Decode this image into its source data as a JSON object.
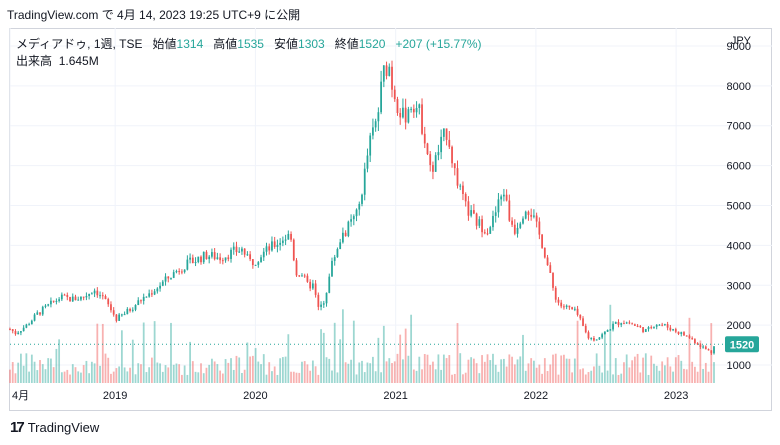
{
  "header": {
    "text": "TradingView.com で 4月 14, 2023 19:25 UTC+9 に公開"
  },
  "legend": {
    "symbol": "メディアドゥ, 1週, TSE",
    "open_label": "始値",
    "open": "1314",
    "high_label": "高値",
    "high": "1535",
    "low_label": "安値",
    "low": "1303",
    "close_label": "終値",
    "close": "1520",
    "change": "+207 (+15.77%)"
  },
  "volume_legend": {
    "label": "出来高",
    "value": "1.645M"
  },
  "footer": {
    "brand": "TradingView",
    "logo_icon": "tradingview-logo-icon"
  },
  "colors": {
    "up": "#26a69a",
    "down": "#ef5350",
    "grid": "#f0f3fa",
    "text": "#131722",
    "price_tag": "#26a69a"
  },
  "chart_data": {
    "type": "candlestick",
    "currency": "JPY",
    "y_ticks": [
      "1000",
      "2000",
      "3000",
      "4000",
      "5000",
      "6000",
      "7000",
      "8000",
      "9000"
    ],
    "ylim": [
      550,
      9450
    ],
    "x_labels": [
      {
        "t": 0.0,
        "label": "4月"
      },
      {
        "t": 0.75,
        "label": "2019"
      },
      {
        "t": 1.75,
        "label": "2020"
      },
      {
        "t": 2.75,
        "label": "2021"
      },
      {
        "t": 3.75,
        "label": "2022"
      },
      {
        "t": 4.75,
        "label": "2023"
      }
    ],
    "last_price": "1520",
    "price_path": [
      [
        0.0,
        1900
      ],
      [
        0.04,
        1800
      ],
      [
        0.12,
        2000
      ],
      [
        0.2,
        2300
      ],
      [
        0.28,
        2500
      ],
      [
        0.36,
        2700
      ],
      [
        0.44,
        2650
      ],
      [
        0.52,
        2700
      ],
      [
        0.6,
        2900
      ],
      [
        0.66,
        2700
      ],
      [
        0.7,
        2500
      ],
      [
        0.76,
        2150
      ],
      [
        0.84,
        2350
      ],
      [
        0.92,
        2600
      ],
      [
        1.0,
        2800
      ],
      [
        1.1,
        3100
      ],
      [
        1.2,
        3400
      ],
      [
        1.3,
        3600
      ],
      [
        1.4,
        3750
      ],
      [
        1.5,
        3700
      ],
      [
        1.6,
        3850
      ],
      [
        1.66,
        3900
      ],
      [
        1.7,
        3600
      ],
      [
        1.74,
        3600
      ],
      [
        1.8,
        3800
      ],
      [
        1.9,
        4050
      ],
      [
        1.96,
        4200
      ],
      [
        2.0,
        4250
      ],
      [
        2.04,
        3300
      ],
      [
        2.08,
        3300
      ],
      [
        2.12,
        3000
      ],
      [
        2.16,
        3000
      ],
      [
        2.2,
        2400
      ],
      [
        2.24,
        2600
      ],
      [
        2.3,
        3600
      ],
      [
        2.36,
        4200
      ],
      [
        2.42,
        4500
      ],
      [
        2.48,
        4800
      ],
      [
        2.52,
        5600
      ],
      [
        2.56,
        6500
      ],
      [
        2.62,
        7200
      ],
      [
        2.66,
        8300
      ],
      [
        2.7,
        8600
      ],
      [
        2.72,
        8100
      ],
      [
        2.76,
        7600
      ],
      [
        2.8,
        7200
      ],
      [
        2.84,
        7400
      ],
      [
        2.88,
        7600
      ],
      [
        2.92,
        7300
      ],
      [
        2.96,
        6700
      ],
      [
        3.0,
        5800
      ],
      [
        3.04,
        6200
      ],
      [
        3.08,
        6600
      ],
      [
        3.12,
        6900
      ],
      [
        3.16,
        6000
      ],
      [
        3.2,
        5500
      ],
      [
        3.24,
        5000
      ],
      [
        3.28,
        4800
      ],
      [
        3.32,
        4600
      ],
      [
        3.36,
        4500
      ],
      [
        3.4,
        4400
      ],
      [
        3.44,
        4600
      ],
      [
        3.48,
        5000
      ],
      [
        3.52,
        5400
      ],
      [
        3.56,
        4700
      ],
      [
        3.6,
        4400
      ],
      [
        3.64,
        4700
      ],
      [
        3.68,
        5000
      ],
      [
        3.72,
        4800
      ],
      [
        3.76,
        4400
      ],
      [
        3.8,
        4000
      ],
      [
        3.84,
        3400
      ],
      [
        3.88,
        2800
      ],
      [
        3.92,
        2500
      ],
      [
        3.96,
        2450
      ],
      [
        4.0,
        2400
      ],
      [
        4.04,
        2300
      ],
      [
        4.08,
        2000
      ],
      [
        4.12,
        1700
      ],
      [
        4.16,
        1650
      ],
      [
        4.2,
        1700
      ],
      [
        4.24,
        1800
      ],
      [
        4.3,
        2000
      ],
      [
        4.36,
        2100
      ],
      [
        4.42,
        2050
      ],
      [
        4.48,
        1950
      ],
      [
        4.54,
        1850
      ],
      [
        4.6,
        2050
      ],
      [
        4.66,
        2000
      ],
      [
        4.72,
        1900
      ],
      [
        4.78,
        1800
      ],
      [
        4.84,
        1700
      ],
      [
        4.88,
        1600
      ],
      [
        4.92,
        1500
      ],
      [
        4.96,
        1400
      ],
      [
        5.0,
        1314
      ],
      [
        5.02,
        1520
      ]
    ]
  }
}
